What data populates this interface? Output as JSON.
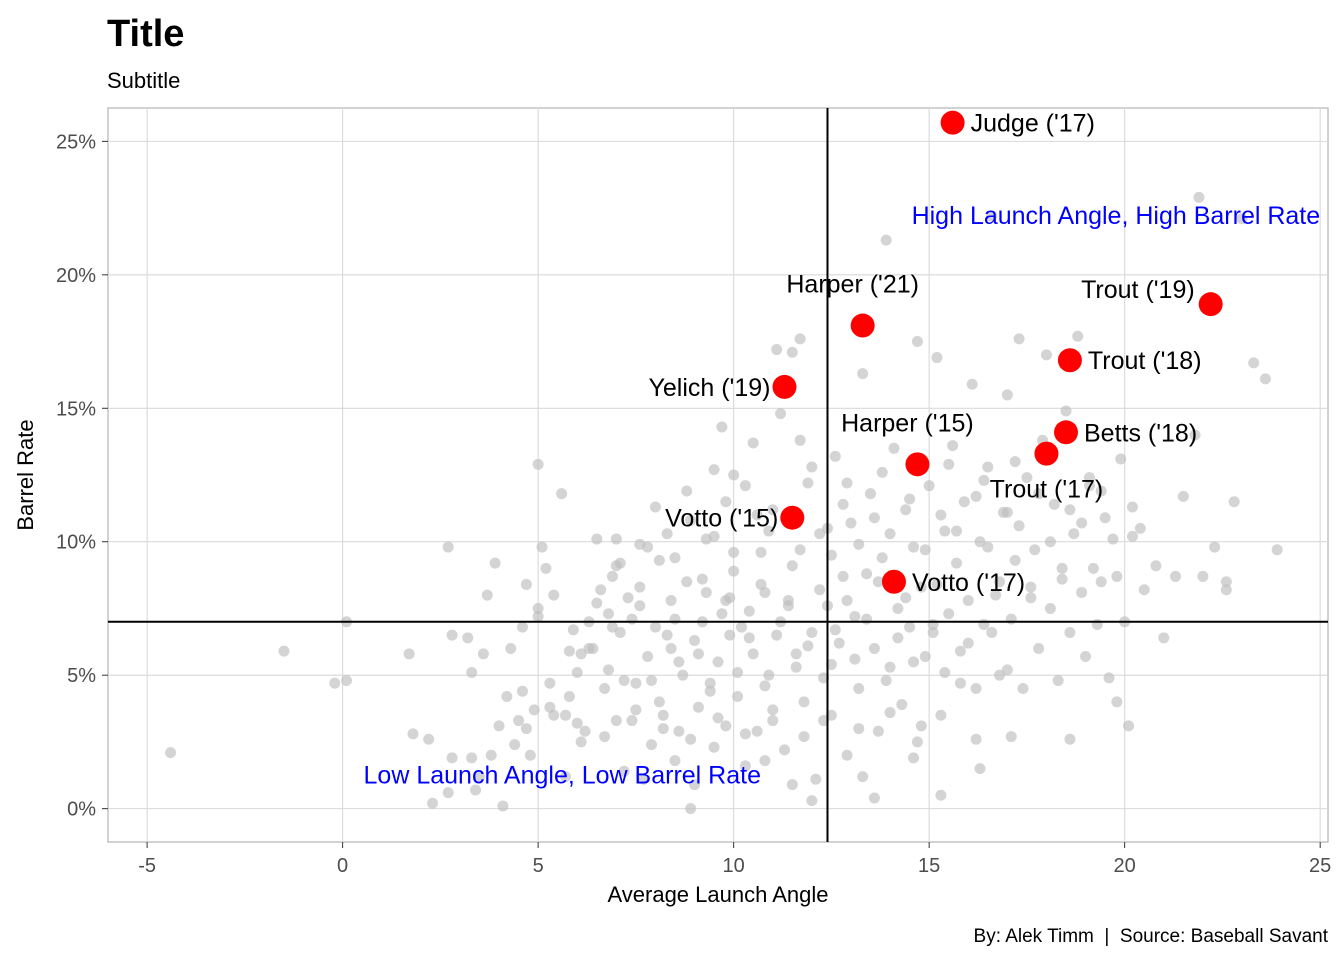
{
  "chart_data": {
    "type": "scatter",
    "title": "Title",
    "subtitle": "Subtitle",
    "xlabel": "Average Launch Angle",
    "ylabel": "Barrel Rate",
    "caption": "By: Alek Timm  |  Source: Baseball Savant",
    "xlim": [
      -6,
      25.2
    ],
    "ylim": [
      -0.0125,
      0.2625
    ],
    "x_ticks": [
      -5,
      0,
      5,
      10,
      15,
      20,
      25
    ],
    "x_tick_labels": [
      "-5",
      "0",
      "5",
      "10",
      "15",
      "20",
      "25"
    ],
    "y_ticks": [
      0,
      0.05,
      0.1,
      0.15,
      0.2,
      0.25
    ],
    "y_tick_labels": [
      "0%",
      "5%",
      "10%",
      "15%",
      "20%",
      "25%"
    ],
    "grid": true,
    "reference_lines": {
      "vline_x": 12.4,
      "hline_y": 0.07
    },
    "annotations": [
      {
        "text": "High Launch Angle, High Barrel Rate",
        "x": 25,
        "y": 0.219,
        "anchor": "end",
        "color": "#0000ff"
      },
      {
        "text": "Low Launch Angle, Low Barrel Rate",
        "x": 10.7,
        "y": 0.0095,
        "anchor": "end",
        "color": "#0000ff"
      }
    ],
    "highlight_color": "#ff0000",
    "background_color": "#bdbdbd",
    "highlighted": [
      {
        "label": "Judge ('17)",
        "x": 15.6,
        "y": 0.257,
        "label_pos": "right"
      },
      {
        "label": "Trout ('19)",
        "x": 22.2,
        "y": 0.189,
        "label_pos": "upper-left"
      },
      {
        "label": "Harper ('21)",
        "x": 13.3,
        "y": 0.181,
        "label_pos": "above"
      },
      {
        "label": "Trout ('18)",
        "x": 18.6,
        "y": 0.168,
        "label_pos": "right"
      },
      {
        "label": "Yelich ('19)",
        "x": 11.3,
        "y": 0.158,
        "label_pos": "left"
      },
      {
        "label": "Betts ('18)",
        "x": 18.5,
        "y": 0.141,
        "label_pos": "right"
      },
      {
        "label": "Harper ('15)",
        "x": 14.7,
        "y": 0.129,
        "label_pos": "above"
      },
      {
        "label": "Trout ('17)",
        "x": 18.0,
        "y": 0.133,
        "label_pos": "below"
      },
      {
        "label": "Votto ('15)",
        "x": 11.5,
        "y": 0.109,
        "label_pos": "left"
      },
      {
        "label": "Votto ('17)",
        "x": 14.1,
        "y": 0.085,
        "label_pos": "right"
      }
    ],
    "background_points": [
      [
        -4.4,
        0.021
      ],
      [
        -1.5,
        0.059
      ],
      [
        -0.2,
        0.047
      ],
      [
        0.1,
        0.048
      ],
      [
        0.1,
        0.07
      ],
      [
        1.7,
        0.058
      ],
      [
        1.8,
        0.028
      ],
      [
        2.2,
        0.026
      ],
      [
        2.3,
        0.002
      ],
      [
        2.8,
        0.065
      ],
      [
        2.8,
        0.019
      ],
      [
        2.7,
        0.006
      ],
      [
        2.7,
        0.098
      ],
      [
        3.2,
        0.064
      ],
      [
        3.3,
        0.051
      ],
      [
        3.3,
        0.019
      ],
      [
        3.4,
        0.007
      ],
      [
        3.5,
        0.012
      ],
      [
        3.6,
        0.058
      ],
      [
        3.7,
        0.08
      ],
      [
        3.8,
        0.02
      ],
      [
        3.9,
        0.092
      ],
      [
        4.0,
        0.031
      ],
      [
        4.1,
        0.001
      ],
      [
        4.2,
        0.042
      ],
      [
        4.3,
        0.06
      ],
      [
        4.4,
        0.024
      ],
      [
        4.5,
        0.033
      ],
      [
        4.6,
        0.068
      ],
      [
        4.7,
        0.084
      ],
      [
        4.7,
        0.03
      ],
      [
        4.8,
        0.02
      ],
      [
        4.9,
        0.037
      ],
      [
        5.0,
        0.072
      ],
      [
        5.0,
        0.075
      ],
      [
        5.0,
        0.129
      ],
      [
        5.1,
        0.098
      ],
      [
        5.2,
        0.09
      ],
      [
        5.3,
        0.047
      ],
      [
        5.4,
        0.035
      ],
      [
        5.4,
        0.08
      ],
      [
        5.6,
        0.118
      ],
      [
        5.7,
        0.012
      ],
      [
        5.7,
        0.035
      ],
      [
        5.8,
        0.042
      ],
      [
        5.9,
        0.067
      ],
      [
        6.0,
        0.051
      ],
      [
        6.1,
        0.058
      ],
      [
        6.1,
        0.025
      ],
      [
        6.2,
        0.029
      ],
      [
        6.3,
        0.07
      ],
      [
        6.4,
        0.06
      ],
      [
        6.5,
        0.101
      ],
      [
        6.6,
        0.082
      ],
      [
        6.7,
        0.045
      ],
      [
        6.8,
        0.073
      ],
      [
        6.9,
        0.068
      ],
      [
        6.9,
        0.087
      ],
      [
        7.0,
        0.033
      ],
      [
        7.0,
        0.091
      ],
      [
        7.0,
        0.101
      ],
      [
        7.1,
        0.066
      ],
      [
        7.2,
        0.014
      ],
      [
        7.2,
        0.048
      ],
      [
        7.3,
        0.079
      ],
      [
        7.4,
        0.033
      ],
      [
        7.5,
        0.047
      ],
      [
        7.6,
        0.076
      ],
      [
        7.6,
        0.099
      ],
      [
        7.7,
        0.011
      ],
      [
        7.8,
        0.057
      ],
      [
        7.9,
        0.024
      ],
      [
        8.0,
        0.068
      ],
      [
        8.1,
        0.04
      ],
      [
        8.1,
        0.093
      ],
      [
        8.2,
        0.035
      ],
      [
        8.3,
        0.103
      ],
      [
        8.4,
        0.06
      ],
      [
        8.5,
        0.018
      ],
      [
        8.5,
        0.071
      ],
      [
        8.6,
        0.029
      ],
      [
        8.7,
        0.05
      ],
      [
        8.8,
        0.085
      ],
      [
        8.8,
        0.119
      ],
      [
        8.9,
        0.0
      ],
      [
        9.0,
        0.063
      ],
      [
        9.0,
        0.009
      ],
      [
        9.1,
        0.038
      ],
      [
        9.2,
        0.07
      ],
      [
        9.3,
        0.081
      ],
      [
        9.4,
        0.047
      ],
      [
        9.5,
        0.102
      ],
      [
        9.5,
        0.023
      ],
      [
        9.6,
        0.055
      ],
      [
        9.7,
        0.143
      ],
      [
        9.8,
        0.078
      ],
      [
        9.8,
        0.031
      ],
      [
        9.9,
        0.065
      ],
      [
        10.0,
        0.089
      ],
      [
        10.0,
        0.125
      ],
      [
        10.1,
        0.042
      ],
      [
        10.2,
        0.068
      ],
      [
        10.3,
        0.016
      ],
      [
        10.4,
        0.074
      ],
      [
        10.5,
        0.058
      ],
      [
        10.5,
        0.137
      ],
      [
        10.6,
        0.029
      ],
      [
        10.7,
        0.096
      ],
      [
        10.8,
        0.081
      ],
      [
        10.9,
        0.05
      ],
      [
        11.0,
        0.112
      ],
      [
        11.0,
        0.037
      ],
      [
        11.1,
        0.172
      ],
      [
        11.1,
        0.065
      ],
      [
        11.2,
        0.148
      ],
      [
        11.3,
        0.022
      ],
      [
        11.4,
        0.078
      ],
      [
        11.5,
        0.091
      ],
      [
        11.5,
        0.171
      ],
      [
        11.6,
        0.058
      ],
      [
        11.7,
        0.138
      ],
      [
        11.7,
        0.176
      ],
      [
        11.8,
        0.04
      ],
      [
        11.9,
        0.122
      ],
      [
        12.0,
        0.066
      ],
      [
        12.1,
        0.011
      ],
      [
        12.2,
        0.103
      ],
      [
        12.3,
        0.033
      ],
      [
        12.4,
        0.076
      ],
      [
        12.5,
        0.095
      ],
      [
        12.5,
        0.054
      ],
      [
        12.6,
        0.132
      ],
      [
        12.7,
        0.062
      ],
      [
        12.8,
        0.087
      ],
      [
        12.9,
        0.02
      ],
      [
        13.0,
        0.107
      ],
      [
        13.1,
        0.072
      ],
      [
        13.2,
        0.045
      ],
      [
        13.3,
        0.163
      ],
      [
        13.3,
        0.012
      ],
      [
        13.4,
        0.088
      ],
      [
        13.5,
        0.118
      ],
      [
        13.6,
        0.06
      ],
      [
        13.7,
        0.029
      ],
      [
        13.8,
        0.094
      ],
      [
        13.9,
        0.213
      ],
      [
        14.0,
        0.053
      ],
      [
        14.1,
        0.135
      ],
      [
        14.2,
        0.075
      ],
      [
        14.3,
        0.039
      ],
      [
        14.4,
        0.112
      ],
      [
        14.5,
        0.068
      ],
      [
        14.6,
        0.098
      ],
      [
        14.7,
        0.175
      ],
      [
        14.7,
        0.025
      ],
      [
        14.8,
        0.083
      ],
      [
        14.9,
        0.057
      ],
      [
        15.0,
        0.121
      ],
      [
        15.1,
        0.066
      ],
      [
        15.2,
        0.169
      ],
      [
        15.3,
        0.035
      ],
      [
        15.4,
        0.104
      ],
      [
        15.5,
        0.073
      ],
      [
        15.6,
        0.136
      ],
      [
        15.7,
        0.092
      ],
      [
        15.8,
        0.047
      ],
      [
        15.9,
        0.115
      ],
      [
        16.0,
        0.062
      ],
      [
        16.1,
        0.159
      ],
      [
        16.2,
        0.026
      ],
      [
        16.3,
        0.1
      ],
      [
        16.4,
        0.069
      ],
      [
        16.5,
        0.128
      ],
      [
        16.6,
        0.222
      ],
      [
        16.7,
        0.08
      ],
      [
        16.8,
        0.05
      ],
      [
        16.9,
        0.111
      ],
      [
        17.0,
        0.155
      ],
      [
        17.1,
        0.071
      ],
      [
        17.2,
        0.093
      ],
      [
        17.3,
        0.176
      ],
      [
        17.4,
        0.045
      ],
      [
        17.5,
        0.124
      ],
      [
        17.6,
        0.083
      ],
      [
        17.7,
        0.097
      ],
      [
        17.8,
        0.06
      ],
      [
        17.9,
        0.138
      ],
      [
        18.0,
        0.17
      ],
      [
        18.1,
        0.075
      ],
      [
        18.2,
        0.114
      ],
      [
        18.3,
        0.048
      ],
      [
        18.4,
        0.09
      ],
      [
        18.5,
        0.149
      ],
      [
        18.6,
        0.066
      ],
      [
        18.7,
        0.103
      ],
      [
        18.8,
        0.177
      ],
      [
        18.9,
        0.081
      ],
      [
        19.0,
        0.057
      ],
      [
        19.1,
        0.121
      ],
      [
        19.2,
        0.09
      ],
      [
        19.3,
        0.069
      ],
      [
        19.4,
        0.085
      ],
      [
        19.5,
        0.109
      ],
      [
        19.6,
        0.049
      ],
      [
        19.8,
        0.087
      ],
      [
        20.0,
        0.07
      ],
      [
        20.2,
        0.102
      ],
      [
        20.5,
        0.082
      ],
      [
        20.8,
        0.091
      ],
      [
        21.0,
        0.064
      ],
      [
        21.3,
        0.087
      ],
      [
        21.5,
        0.117
      ],
      [
        21.8,
        0.14
      ],
      [
        22.0,
        0.087
      ],
      [
        22.3,
        0.098
      ],
      [
        22.6,
        0.085
      ],
      [
        22.8,
        0.115
      ],
      [
        23.0,
        0.221
      ],
      [
        23.3,
        0.167
      ],
      [
        23.6,
        0.161
      ],
      [
        23.9,
        0.097
      ],
      [
        21.9,
        0.229
      ],
      [
        22.6,
        0.082
      ],
      [
        19.8,
        0.04
      ],
      [
        6.3,
        0.06
      ],
      [
        7.4,
        0.071
      ],
      [
        8.3,
        0.065
      ],
      [
        9.1,
        0.058
      ],
      [
        9.7,
        0.073
      ],
      [
        10.4,
        0.064
      ],
      [
        11.2,
        0.07
      ],
      [
        11.9,
        0.061
      ],
      [
        12.6,
        0.067
      ],
      [
        13.4,
        0.071
      ],
      [
        14.2,
        0.064
      ],
      [
        15.1,
        0.069
      ],
      [
        15.8,
        0.059
      ],
      [
        16.6,
        0.066
      ],
      [
        5.8,
        0.059
      ],
      [
        6.8,
        0.052
      ],
      [
        7.9,
        0.048
      ],
      [
        8.6,
        0.055
      ],
      [
        9.4,
        0.044
      ],
      [
        10.1,
        0.051
      ],
      [
        10.8,
        0.046
      ],
      [
        11.6,
        0.053
      ],
      [
        12.3,
        0.049
      ],
      [
        13.1,
        0.056
      ],
      [
        13.9,
        0.048
      ],
      [
        14.6,
        0.055
      ],
      [
        15.4,
        0.051
      ],
      [
        16.2,
        0.045
      ],
      [
        17.0,
        0.052
      ],
      [
        6.5,
        0.077
      ],
      [
        7.6,
        0.083
      ],
      [
        8.4,
        0.078
      ],
      [
        9.2,
        0.086
      ],
      [
        9.9,
        0.079
      ],
      [
        10.7,
        0.084
      ],
      [
        11.4,
        0.076
      ],
      [
        12.2,
        0.082
      ],
      [
        12.9,
        0.078
      ],
      [
        13.7,
        0.085
      ],
      [
        14.4,
        0.079
      ],
      [
        15.2,
        0.084
      ],
      [
        16.0,
        0.078
      ],
      [
        16.8,
        0.085
      ],
      [
        17.6,
        0.079
      ],
      [
        18.4,
        0.086
      ],
      [
        4.6,
        0.044
      ],
      [
        5.3,
        0.038
      ],
      [
        6.0,
        0.032
      ],
      [
        6.7,
        0.027
      ],
      [
        7.5,
        0.037
      ],
      [
        8.2,
        0.03
      ],
      [
        8.9,
        0.026
      ],
      [
        9.6,
        0.034
      ],
      [
        10.3,
        0.028
      ],
      [
        11.0,
        0.033
      ],
      [
        11.8,
        0.027
      ],
      [
        12.5,
        0.035
      ],
      [
        13.2,
        0.03
      ],
      [
        14.0,
        0.036
      ],
      [
        14.8,
        0.031
      ],
      [
        7.1,
        0.092
      ],
      [
        7.8,
        0.098
      ],
      [
        8.5,
        0.094
      ],
      [
        9.3,
        0.101
      ],
      [
        10.0,
        0.096
      ],
      [
        10.9,
        0.104
      ],
      [
        11.7,
        0.097
      ],
      [
        12.4,
        0.105
      ],
      [
        13.2,
        0.099
      ],
      [
        14.0,
        0.103
      ],
      [
        14.9,
        0.097
      ],
      [
        15.7,
        0.104
      ],
      [
        16.5,
        0.098
      ],
      [
        17.3,
        0.106
      ],
      [
        18.1,
        0.1
      ],
      [
        18.9,
        0.107
      ],
      [
        19.7,
        0.101
      ],
      [
        20.4,
        0.105
      ],
      [
        8.0,
        0.113
      ],
      [
        8.9,
        0.108
      ],
      [
        9.8,
        0.115
      ],
      [
        10.6,
        0.11
      ],
      [
        12.8,
        0.114
      ],
      [
        13.6,
        0.109
      ],
      [
        14.5,
        0.116
      ],
      [
        15.3,
        0.11
      ],
      [
        16.2,
        0.117
      ],
      [
        17.0,
        0.111
      ],
      [
        17.8,
        0.118
      ],
      [
        18.6,
        0.112
      ],
      [
        19.4,
        0.119
      ],
      [
        20.2,
        0.113
      ],
      [
        9.5,
        0.127
      ],
      [
        10.3,
        0.121
      ],
      [
        12.0,
        0.128
      ],
      [
        12.9,
        0.122
      ],
      [
        13.8,
        0.126
      ],
      [
        15.5,
        0.129
      ],
      [
        16.4,
        0.123
      ],
      [
        17.2,
        0.13
      ],
      [
        19.1,
        0.124
      ],
      [
        19.9,
        0.131
      ],
      [
        10.8,
        0.018
      ],
      [
        11.5,
        0.009
      ],
      [
        12.0,
        0.003
      ],
      [
        13.6,
        0.004
      ],
      [
        14.6,
        0.019
      ],
      [
        15.3,
        0.005
      ],
      [
        16.3,
        0.015
      ],
      [
        17.1,
        0.027
      ],
      [
        18.6,
        0.026
      ],
      [
        20.1,
        0.031
      ]
    ]
  }
}
